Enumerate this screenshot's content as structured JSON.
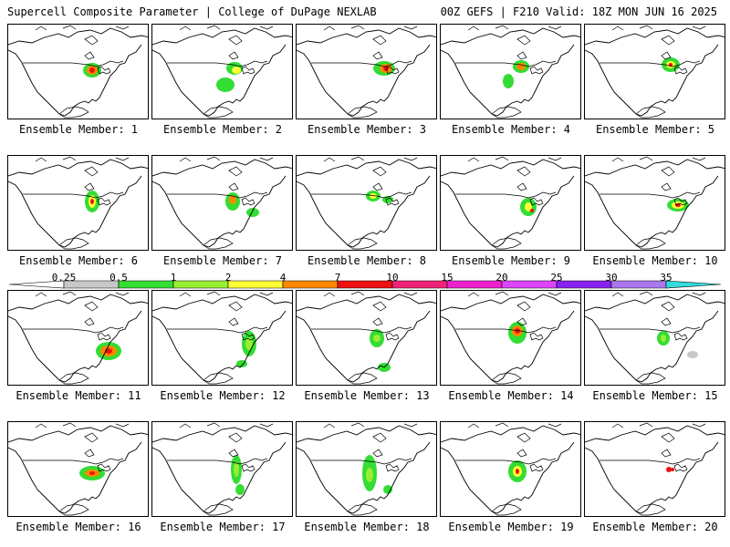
{
  "header": {
    "left": "Supercell Composite Parameter | College of DuPage NEXLAB",
    "right": "00Z GEFS | F210 Valid: 18Z MON JUN 16 2025"
  },
  "panel_label_prefix": "Ensemble Member:",
  "members": [
    {
      "id": "1",
      "label": "Ensemble Member: 1"
    },
    {
      "id": "2",
      "label": "Ensemble Member: 2"
    },
    {
      "id": "3",
      "label": "Ensemble Member: 3"
    },
    {
      "id": "4",
      "label": "Ensemble Member: 4"
    },
    {
      "id": "5",
      "label": "Ensemble Member: 5"
    },
    {
      "id": "6",
      "label": "Ensemble Member: 6"
    },
    {
      "id": "7",
      "label": "Ensemble Member: 7"
    },
    {
      "id": "8",
      "label": "Ensemble Member: 8"
    },
    {
      "id": "9",
      "label": "Ensemble Member: 9"
    },
    {
      "id": "10",
      "label": "Ensemble Member: 10"
    },
    {
      "id": "11",
      "label": "Ensemble Member: 11"
    },
    {
      "id": "12",
      "label": "Ensemble Member: 12"
    },
    {
      "id": "13",
      "label": "Ensemble Member: 13"
    },
    {
      "id": "14",
      "label": "Ensemble Member: 14"
    },
    {
      "id": "15",
      "label": "Ensemble Member: 15"
    },
    {
      "id": "16",
      "label": "Ensemble Member: 16"
    },
    {
      "id": "17",
      "label": "Ensemble Member: 17"
    },
    {
      "id": "18",
      "label": "Ensemble Member: 18"
    },
    {
      "id": "19",
      "label": "Ensemble Member: 19"
    },
    {
      "id": "20",
      "label": "Ensemble Member: 20"
    }
  ],
  "colorbar": {
    "ticks": [
      "0.25",
      "0.5",
      "1",
      "2",
      "4",
      "7",
      "10",
      "15",
      "20",
      "25",
      "30",
      "35"
    ],
    "colors": [
      "#ffffff",
      "#c8c8c8",
      "#33dd33",
      "#99ee33",
      "#ffff33",
      "#ff8800",
      "#ee1111",
      "#ee2277",
      "#ee22cc",
      "#dd44ff",
      "#8822ee",
      "#aa77ee",
      "#33dddd"
    ]
  }
}
